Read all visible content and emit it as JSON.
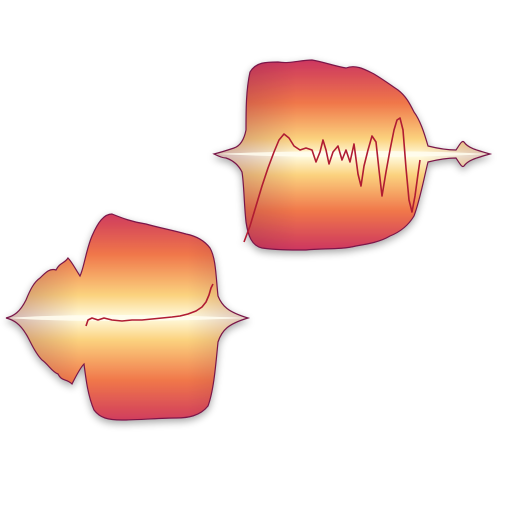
{
  "icon": {
    "colors": {
      "core": "#fffbe0",
      "warm": "#fbd27e",
      "orange": "#f0774a",
      "edge": "#c82e62",
      "rim": "#6a1245",
      "pitch_line": "#b01a33",
      "background": "#ffffff"
    },
    "blobs": [
      "lower-left-note-blob",
      "upper-right-note-blob"
    ]
  }
}
